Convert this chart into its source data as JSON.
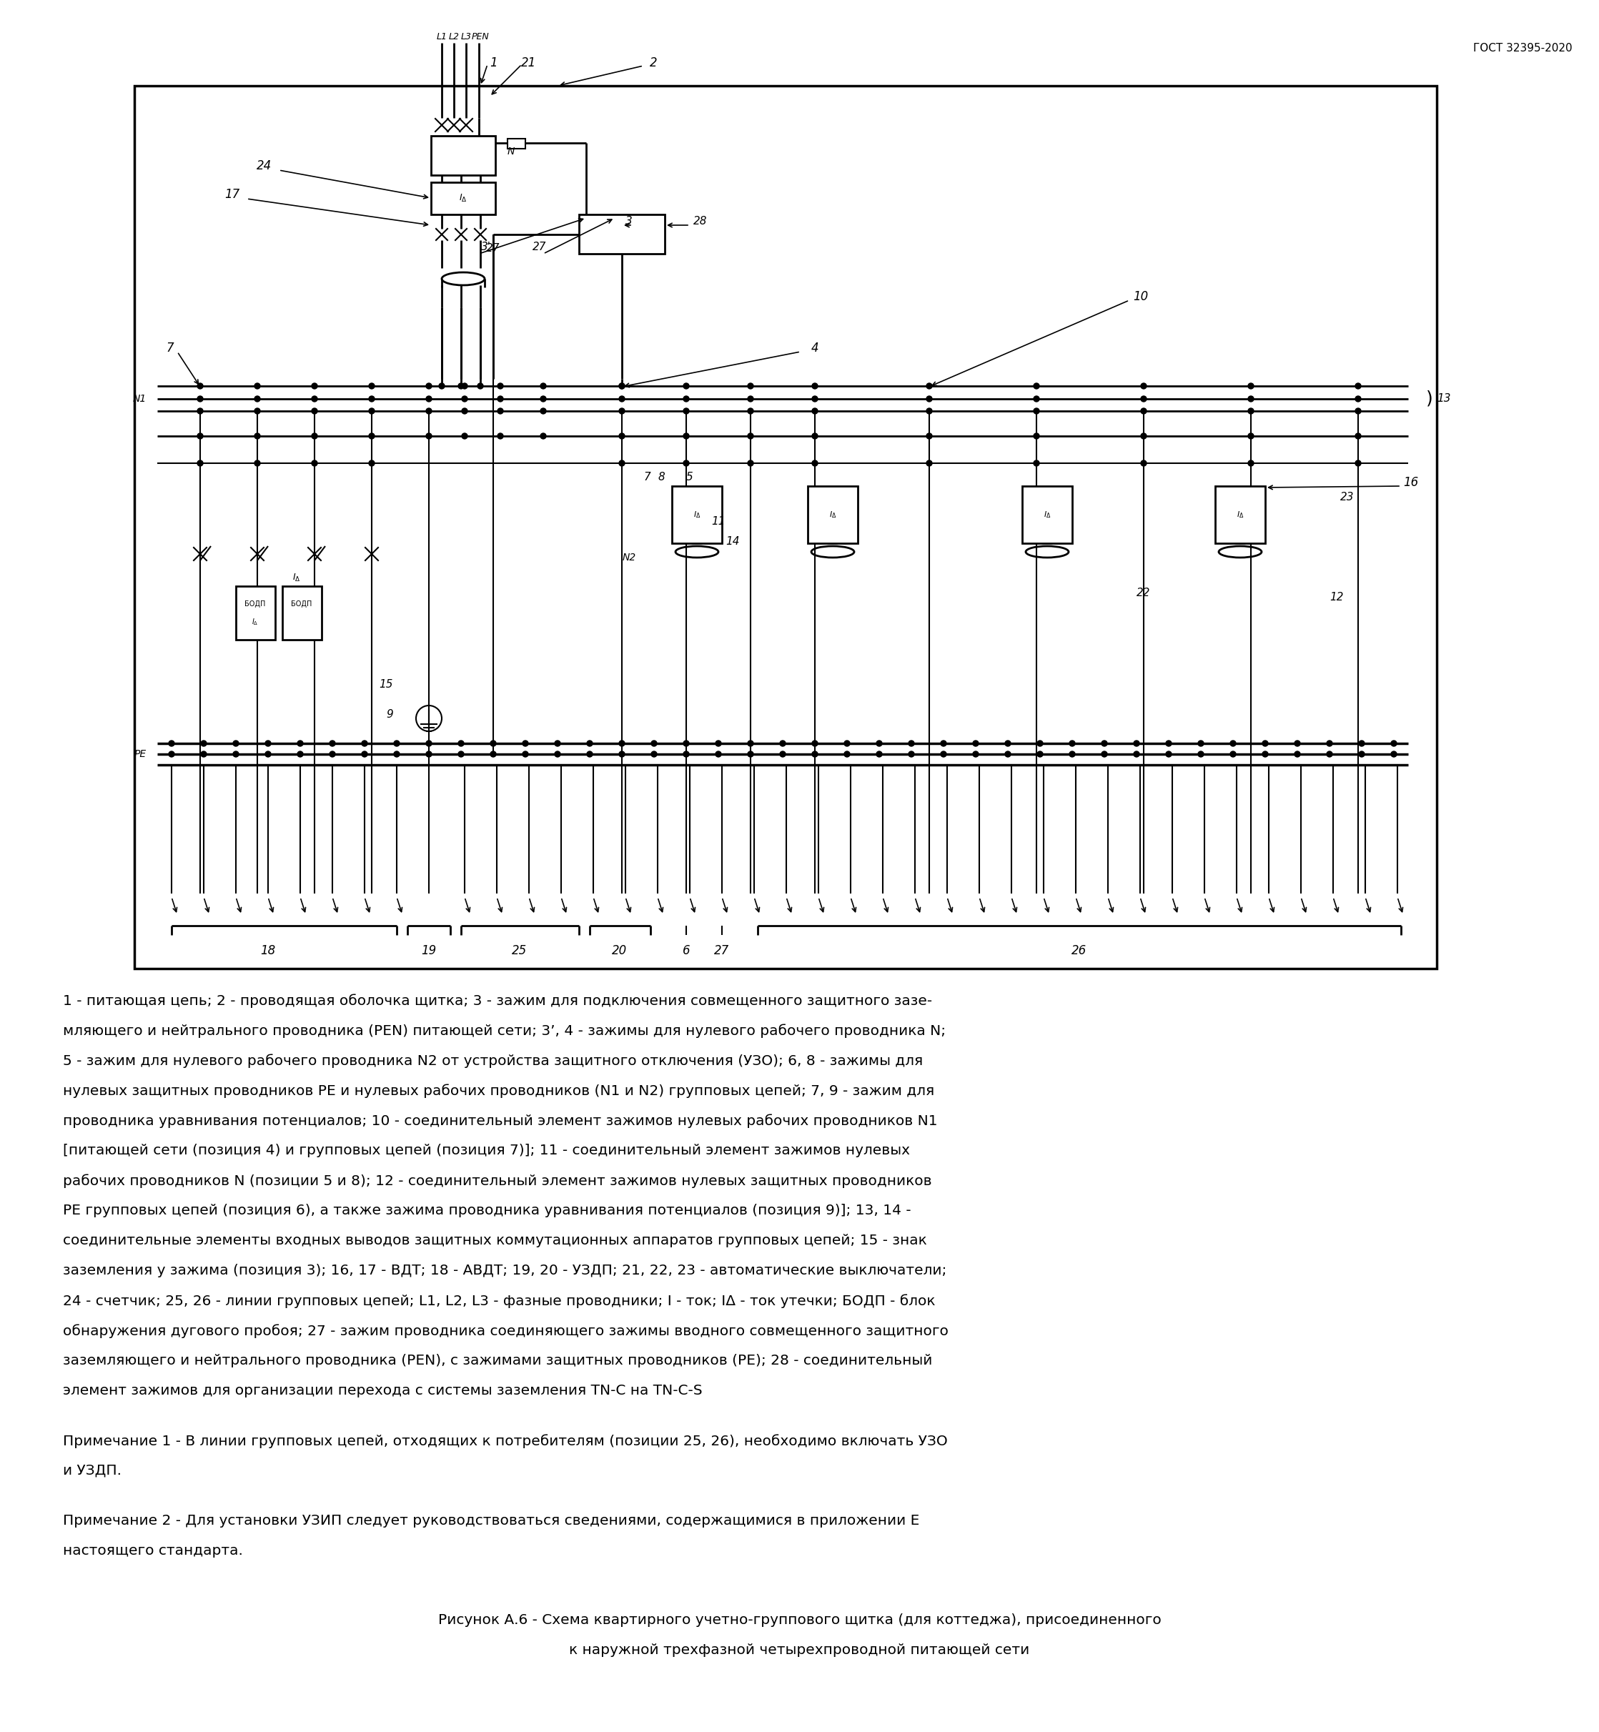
{
  "title_standard": "ГОСТ 32395-2020",
  "figure_title_line1": "Рисунок А.6 - Схема квартирного учетно-группового щитка (для коттеджа), присоединенного",
  "figure_title_line2": "к наружной трехфазной четырехпроводной питающей сети",
  "description": [
    "1 - питающая цепь; 2 - проводящая оболочка щитка; 3 - зажим для подключения совмещенного защитного зазе-",
    "мляющего и нейтрального проводника (PEN) питающей сети; 3’, 4 - зажимы для нулевого рабочего проводника N;",
    "5 - зажим для нулевого рабочего проводника N2 от устройства защитного отключения (УЗО); 6, 8 - зажимы для",
    "нулевых защитных проводников PE и нулевых рабочих проводников (N1 и N2) групповых цепей; 7, 9 - зажим для",
    "проводника уравнивания потенциалов; 10 - соединительный элемент зажимов нулевых рабочих проводников N1",
    "[питающей сети (позиция 4) и групповых цепей (позиция 7)]; 11 - соединительный элемент зажимов нулевых",
    "рабочих проводников N (позиции 5 и 8); 12 - соединительный элемент зажимов нулевых защитных проводников",
    "PE групповых цепей (позиция 6), а также зажима проводника уравнивания потенциалов (позиция 9)]; 13, 14 -",
    "соединительные элементы входных выводов защитных коммутационных аппаратов групповых цепей; 15 - знак",
    "заземления у зажима (позиция 3); 16, 17 - ВДТ; 18 - АВДТ; 19, 20 - УЗДП; 21, 22, 23 - автоматические выключатели;",
    "24 - счетчик; 25, 26 - линии групповых цепей; L1, L2, L3 - фазные проводники; I - ток; IΔ - ток утечки; БОДП - блок",
    "обнаружения дугового пробоя; 27 - зажим проводника соединяющего зажимы вводного совмещенного защитного",
    "заземляющего и нейтрального проводника (PEN), с зажимами защитных проводников (PE); 28 - соединительный",
    "элемент зажимов для организации перехода с системы заземления TN-C на TN-C-S"
  ],
  "note1": "Примечание 1 - В линии групповых цепей, отходящих к потребителям (позиции 25, 26), необходимо включать УЗО",
  "note1b": "и УЗДП.",
  "note2": "Примечание 2 - Для установки УЗИП следует руководствоваться сведениями, содержащимися в приложении Е",
  "note2b": "настоящего стандарта.",
  "bg_color": "#ffffff",
  "diagram_color": "#000000",
  "text_color": "#000000"
}
